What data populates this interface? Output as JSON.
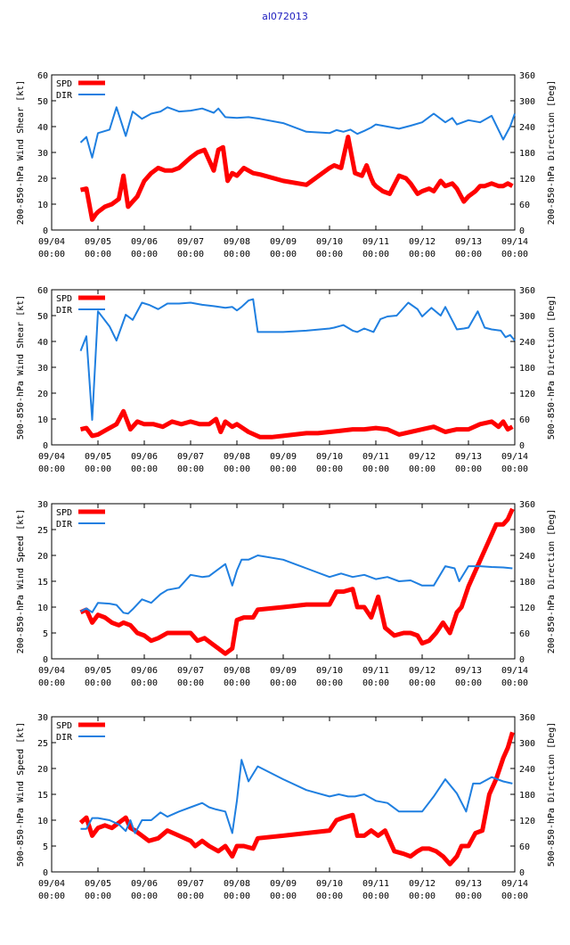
{
  "title": "al072013",
  "colors": {
    "spd": "#ff0000",
    "dir": "#1f7fe0"
  },
  "x_ticks": [
    [
      "09/04",
      "00:00"
    ],
    [
      "09/05",
      "00:00"
    ],
    [
      "09/06",
      "00:00"
    ],
    [
      "09/07",
      "00:00"
    ],
    [
      "09/08",
      "00:00"
    ],
    [
      "09/09",
      "00:00"
    ],
    [
      "09/10",
      "00:00"
    ],
    [
      "09/11",
      "00:00"
    ],
    [
      "09/12",
      "00:00"
    ],
    [
      "09/13",
      "00:00"
    ],
    [
      "09/14",
      "00:00"
    ]
  ],
  "chart_data": [
    {
      "type": "line",
      "ylabel_left": "200-850-hPa Wind Shear [kt]",
      "ylabel_right": "200-850-hPa Direction [Deg]",
      "xlim": [
        0,
        10
      ],
      "ylim_left": [
        0,
        60
      ],
      "ylim_right": [
        0,
        360
      ],
      "left_ticks": [
        "0",
        "10",
        "20",
        "30",
        "40",
        "50",
        "60"
      ],
      "right_ticks": [
        "0",
        "60",
        "120",
        "180",
        "240",
        "300",
        "360"
      ],
      "legend": {
        "spd": "SPD",
        "dir": "DIR"
      },
      "series": [
        {
          "name": "SPD",
          "axis": "left",
          "color": "#ff0000",
          "x": [
            0.625,
            0.75,
            0.875,
            0.95,
            1.0,
            1.15,
            1.3,
            1.45,
            1.55,
            1.65,
            1.75,
            1.85,
            2.0,
            2.15,
            2.3,
            2.45,
            2.6,
            2.75,
            3.0,
            3.15,
            3.3,
            3.5,
            3.6,
            3.7,
            3.8,
            3.9,
            4.0,
            4.15,
            4.35,
            4.5,
            5.0,
            5.5,
            6.0,
            6.1,
            6.25,
            6.4,
            6.55,
            6.7,
            6.8,
            6.9,
            6.95,
            7.0,
            7.15,
            7.3,
            7.5,
            7.65,
            7.75,
            7.9,
            8.0,
            8.15,
            8.25,
            8.4,
            8.5,
            8.65,
            8.75,
            8.9,
            9.0,
            9.15,
            9.25,
            9.35,
            9.5,
            9.65,
            9.75,
            9.85,
            9.95
          ],
          "values": [
            15.5,
            16,
            4,
            6,
            7,
            9,
            10,
            12,
            21,
            9,
            11,
            13,
            19,
            22,
            24,
            23,
            23,
            24,
            28,
            30,
            31,
            23,
            31,
            32,
            19,
            22,
            21,
            24,
            22,
            21.5,
            19,
            17.5,
            24,
            25,
            24,
            36,
            22,
            21,
            25,
            20,
            18,
            17,
            15,
            14,
            21,
            20,
            18,
            14,
            15,
            16,
            15,
            19,
            17,
            18,
            16,
            11,
            13,
            15,
            17,
            17,
            18,
            17,
            17,
            18,
            17
          ]
        },
        {
          "name": "DIR",
          "axis": "right",
          "color": "#1f7fe0",
          "x": [
            0.625,
            0.75,
            0.875,
            1.0,
            1.25,
            1.4,
            1.6,
            1.75,
            1.95,
            2.15,
            2.35,
            2.5,
            2.75,
            3.0,
            3.25,
            3.5,
            3.6,
            3.75,
            4.0,
            4.25,
            4.5,
            5.0,
            5.5,
            6.0,
            6.15,
            6.3,
            6.45,
            6.6,
            6.75,
            6.9,
            7.0,
            7.25,
            7.5,
            7.75,
            8.0,
            8.25,
            8.5,
            8.65,
            8.75,
            9.0,
            9.25,
            9.5,
            9.75,
            9.9,
            10.0
          ],
          "values": [
            203,
            216,
            168,
            225,
            233,
            285,
            218,
            275,
            258,
            270,
            275,
            285,
            275,
            277,
            282,
            272,
            282,
            262,
            260,
            262,
            258,
            248,
            228,
            225,
            232,
            228,
            233,
            223,
            230,
            238,
            245,
            240,
            235,
            242,
            250,
            270,
            250,
            260,
            245,
            255,
            250,
            265,
            210,
            240,
            270
          ]
        }
      ]
    },
    {
      "type": "line",
      "ylabel_left": "500-850-hPa Wind Shear [kt]",
      "ylabel_right": "500-850-hPa Direction [Deg]",
      "xlim": [
        0,
        10
      ],
      "ylim_left": [
        0,
        60
      ],
      "ylim_right": [
        0,
        360
      ],
      "left_ticks": [
        "0",
        "10",
        "20",
        "30",
        "40",
        "50",
        "60"
      ],
      "right_ticks": [
        "0",
        "60",
        "120",
        "180",
        "240",
        "300",
        "360"
      ],
      "legend": {
        "spd": "SPD",
        "dir": "DIR"
      },
      "series": [
        {
          "name": "SPD",
          "axis": "left",
          "color": "#ff0000",
          "x": [
            0.625,
            0.75,
            0.875,
            1.0,
            1.2,
            1.4,
            1.55,
            1.7,
            1.85,
            2.0,
            2.2,
            2.4,
            2.6,
            2.8,
            3.0,
            3.2,
            3.4,
            3.55,
            3.65,
            3.75,
            3.9,
            4.0,
            4.25,
            4.5,
            4.75,
            5.0,
            5.25,
            5.5,
            5.75,
            6.0,
            6.25,
            6.5,
            6.75,
            7.0,
            7.25,
            7.5,
            7.75,
            8.0,
            8.25,
            8.5,
            8.75,
            9.0,
            9.25,
            9.5,
            9.65,
            9.75,
            9.85,
            9.95
          ],
          "values": [
            6,
            6.5,
            3.5,
            4,
            6,
            8,
            13,
            6,
            9,
            8,
            8,
            7,
            9,
            8,
            9,
            8,
            8,
            10,
            5,
            9,
            7,
            8,
            5,
            3,
            3,
            3.5,
            4,
            4.5,
            4.5,
            5,
            5.5,
            6,
            6,
            6.5,
            6,
            4,
            5,
            6,
            7,
            5,
            6,
            6,
            8,
            9,
            7,
            9,
            6,
            7
          ]
        },
        {
          "name": "DIR",
          "axis": "right",
          "color": "#1f7fe0",
          "x": [
            0.625,
            0.75,
            0.875,
            1.0,
            1.25,
            1.4,
            1.6,
            1.75,
            1.95,
            2.1,
            2.3,
            2.5,
            2.75,
            3.0,
            3.25,
            3.5,
            3.75,
            3.9,
            4.0,
            4.1,
            4.25,
            4.35,
            4.45,
            5.0,
            5.5,
            6.0,
            6.1,
            6.3,
            6.5,
            6.6,
            6.75,
            6.95,
            7.1,
            7.25,
            7.45,
            7.7,
            7.9,
            8.0,
            8.2,
            8.4,
            8.5,
            8.75,
            8.9,
            9.0,
            9.2,
            9.35,
            9.5,
            9.7,
            9.8,
            9.9,
            10.0
          ],
          "values": [
            218,
            252,
            58,
            310,
            275,
            242,
            302,
            290,
            330,
            325,
            315,
            328,
            328,
            330,
            325,
            322,
            318,
            320,
            312,
            320,
            335,
            338,
            262,
            262,
            265,
            270,
            272,
            278,
            265,
            262,
            270,
            262,
            292,
            298,
            300,
            330,
            315,
            298,
            318,
            300,
            320,
            268,
            270,
            272,
            310,
            272,
            268,
            265,
            250,
            255,
            242
          ]
        }
      ]
    },
    {
      "type": "line",
      "ylabel_left": "200-850-hPa Wind Speed [kt]",
      "ylabel_right": "200-850-hPa Direction [Deg]",
      "xlim": [
        0,
        10
      ],
      "ylim_left": [
        0,
        30
      ],
      "ylim_right": [
        0,
        360
      ],
      "left_ticks": [
        "0",
        "5",
        "10",
        "15",
        "20",
        "25",
        "30"
      ],
      "right_ticks": [
        "0",
        "60",
        "120",
        "180",
        "240",
        "300",
        "360"
      ],
      "legend": {
        "spd": "SPD",
        "dir": "DIR"
      },
      "series": [
        {
          "name": "SPD",
          "axis": "left",
          "color": "#ff0000",
          "x": [
            0.625,
            0.75,
            0.875,
            1.0,
            1.15,
            1.3,
            1.45,
            1.55,
            1.7,
            1.85,
            2.0,
            2.15,
            2.3,
            2.5,
            2.75,
            3.0,
            3.15,
            3.3,
            3.45,
            3.6,
            3.75,
            3.9,
            4.0,
            4.15,
            4.35,
            4.45,
            5.0,
            5.5,
            6.0,
            6.15,
            6.3,
            6.5,
            6.6,
            6.75,
            6.9,
            7.05,
            7.2,
            7.4,
            7.6,
            7.75,
            7.9,
            8.0,
            8.15,
            8.3,
            8.45,
            8.6,
            8.75,
            8.85,
            9.0,
            9.15,
            9.3,
            9.45,
            9.6,
            9.75,
            9.85,
            9.95
          ],
          "values": [
            9,
            9.5,
            7,
            8.5,
            8,
            7,
            6.5,
            7,
            6.5,
            5,
            4.5,
            3.5,
            4,
            5,
            5,
            5,
            3.5,
            4,
            3,
            2,
            1,
            2,
            7.5,
            8,
            8,
            9.5,
            10,
            10.5,
            10.5,
            13,
            13,
            13.5,
            10,
            10,
            8,
            12,
            6,
            4.5,
            5,
            5,
            4.5,
            3,
            3.5,
            5,
            7,
            5,
            9,
            10,
            14,
            17,
            20,
            23,
            26,
            26,
            27,
            29
          ]
        },
        {
          "name": "DIR",
          "axis": "right",
          "color": "#1f7fe0",
          "x": [
            0.625,
            0.75,
            0.875,
            1.0,
            1.25,
            1.4,
            1.55,
            1.65,
            1.75,
            1.95,
            2.15,
            2.35,
            2.5,
            2.75,
            3.0,
            3.25,
            3.4,
            3.5,
            3.75,
            3.9,
            4.0,
            4.1,
            4.25,
            4.45,
            5.0,
            5.5,
            6.0,
            6.25,
            6.5,
            6.75,
            7.0,
            7.25,
            7.5,
            7.75,
            8.0,
            8.25,
            8.5,
            8.7,
            8.8,
            9.0,
            9.25,
            9.5,
            9.75,
            9.95
          ],
          "values": [
            110,
            117,
            108,
            130,
            128,
            125,
            107,
            105,
            115,
            138,
            130,
            150,
            160,
            165,
            195,
            190,
            192,
            200,
            220,
            170,
            205,
            230,
            230,
            240,
            230,
            210,
            190,
            198,
            190,
            195,
            185,
            190,
            180,
            182,
            170,
            170,
            215,
            210,
            180,
            215,
            215,
            213,
            212,
            210
          ]
        }
      ]
    },
    {
      "type": "line",
      "ylabel_left": "500-850-hPa Wind Speed [kt]",
      "ylabel_right": "500-850-hPa Direction [Deg]",
      "xlim": [
        0,
        10
      ],
      "ylim_left": [
        0,
        30
      ],
      "ylim_right": [
        0,
        360
      ],
      "left_ticks": [
        "0",
        "5",
        "10",
        "15",
        "20",
        "25",
        "30"
      ],
      "right_ticks": [
        "0",
        "60",
        "120",
        "180",
        "240",
        "300",
        "360"
      ],
      "legend": {
        "spd": "SPD",
        "dir": "DIR"
      },
      "series": [
        {
          "name": "SPD",
          "axis": "left",
          "color": "#ff0000",
          "x": [
            0.625,
            0.75,
            0.875,
            1.0,
            1.15,
            1.3,
            1.45,
            1.6,
            1.7,
            1.8,
            1.95,
            2.1,
            2.3,
            2.5,
            2.75,
            3.0,
            3.1,
            3.25,
            3.4,
            3.6,
            3.75,
            3.9,
            4.0,
            4.15,
            4.35,
            4.45,
            5.0,
            5.5,
            6.0,
            6.15,
            6.3,
            6.5,
            6.6,
            6.75,
            6.9,
            7.05,
            7.2,
            7.4,
            7.6,
            7.75,
            7.9,
            8.0,
            8.15,
            8.3,
            8.45,
            8.6,
            8.75,
            8.85,
            9.0,
            9.15,
            9.3,
            9.45,
            9.6,
            9.75,
            9.85,
            9.95
          ],
          "values": [
            9.5,
            10.5,
            7,
            8.5,
            9,
            8.5,
            9.5,
            10.5,
            8.5,
            8,
            7,
            6,
            6.5,
            8,
            7,
            6,
            5,
            6,
            5,
            4,
            5,
            3,
            5,
            5,
            4.5,
            6.5,
            7,
            7.5,
            8,
            10,
            10.5,
            11,
            7,
            7,
            8,
            7,
            8,
            4,
            3.5,
            3,
            4,
            4.5,
            4.5,
            4,
            3,
            1.5,
            3,
            5,
            5,
            7.5,
            8,
            15,
            18,
            22,
            24,
            27
          ]
        },
        {
          "name": "DIR",
          "axis": "right",
          "color": "#1f7fe0",
          "x": [
            0.625,
            0.75,
            0.875,
            1.0,
            1.25,
            1.45,
            1.6,
            1.7,
            1.8,
            1.95,
            2.15,
            2.35,
            2.5,
            2.75,
            3.0,
            3.25,
            3.4,
            3.55,
            3.75,
            3.9,
            4.0,
            4.1,
            4.25,
            4.45,
            5.0,
            5.5,
            6.0,
            6.2,
            6.4,
            6.55,
            6.75,
            7.0,
            7.25,
            7.5,
            7.75,
            8.0,
            8.25,
            8.5,
            8.75,
            8.95,
            9.1,
            9.25,
            9.5,
            9.75,
            9.95
          ],
          "values": [
            100,
            100,
            125,
            125,
            120,
            110,
            95,
            120,
            90,
            120,
            120,
            138,
            128,
            140,
            150,
            160,
            150,
            145,
            140,
            90,
            165,
            260,
            210,
            245,
            215,
            190,
            175,
            180,
            175,
            175,
            180,
            165,
            160,
            140,
            140,
            140,
            175,
            215,
            182,
            140,
            205,
            205,
            220,
            210,
            205
          ]
        }
      ]
    }
  ]
}
